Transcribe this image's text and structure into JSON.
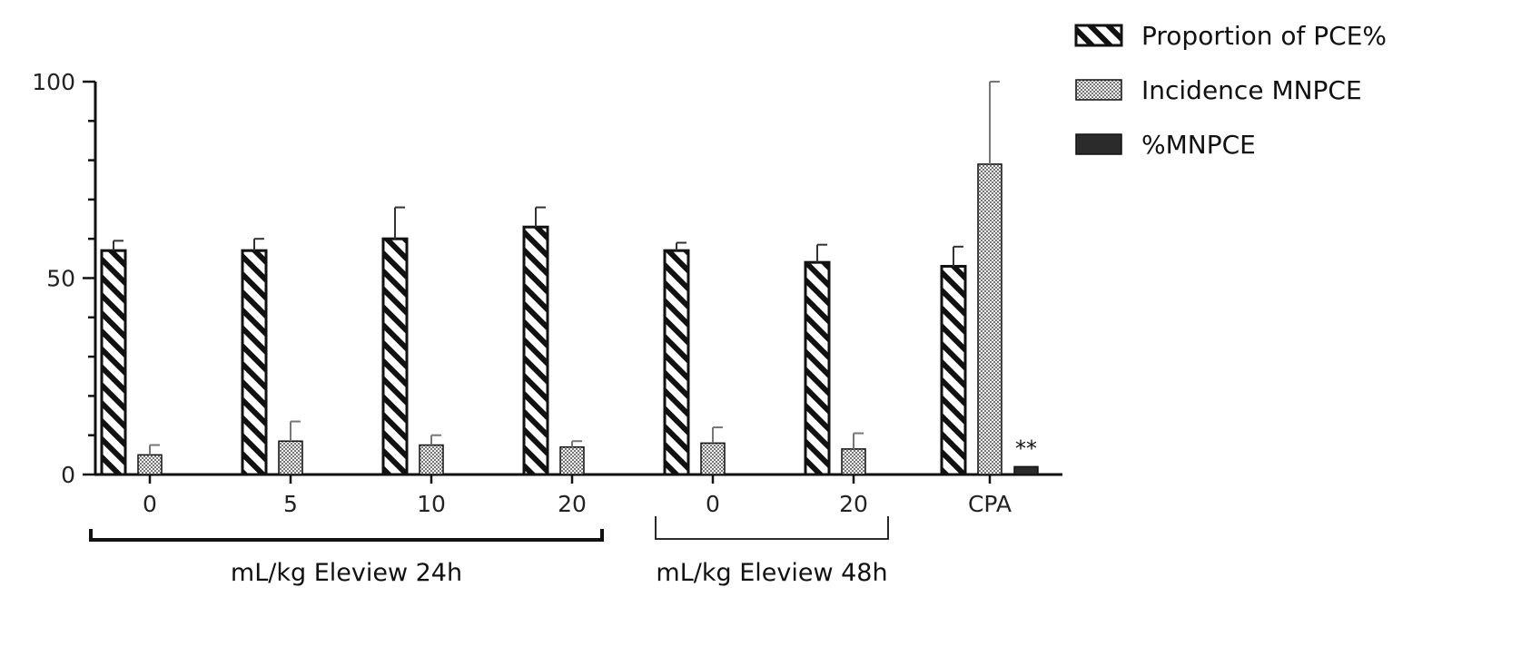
{
  "chart_data": {
    "type": "bar",
    "categories": [
      "0",
      "5",
      "10",
      "20",
      "0",
      "20",
      "CPA"
    ],
    "ylim": [
      0,
      100
    ],
    "yticks": [
      0,
      50,
      100
    ],
    "series": [
      {
        "name": "Proportion of PCE%",
        "pattern": "diagonal-hatch",
        "values": [
          57,
          57,
          60,
          63,
          57,
          54,
          53
        ],
        "errors": [
          2.5,
          3,
          8,
          5,
          2,
          4.5,
          5
        ]
      },
      {
        "name": "Incidence MNPCE",
        "pattern": "crosshatch",
        "values": [
          5,
          8.5,
          7.5,
          7,
          8,
          6.5,
          79
        ],
        "errors": [
          2.5,
          5,
          2.5,
          1.5,
          4,
          4,
          21
        ]
      },
      {
        "name": "%MNPCE",
        "pattern": "solid-dark",
        "values": [
          0,
          0,
          0,
          0,
          0,
          0,
          2
        ],
        "errors": [
          0,
          0,
          0,
          0,
          0,
          0,
          0
        ]
      }
    ],
    "groups": [
      {
        "label": "mL/kg Eleview 24h",
        "from": 0,
        "to": 3
      },
      {
        "label": "mL/kg Eleview 48h",
        "from": 4,
        "to": 5
      }
    ],
    "annotations": [
      {
        "text": "**",
        "category": 6,
        "series": 2
      }
    ],
    "legend_position": "top-right",
    "colors": {
      "axis": "#111111",
      "hatch": "#111111",
      "solid": "#2b2b2b"
    }
  }
}
